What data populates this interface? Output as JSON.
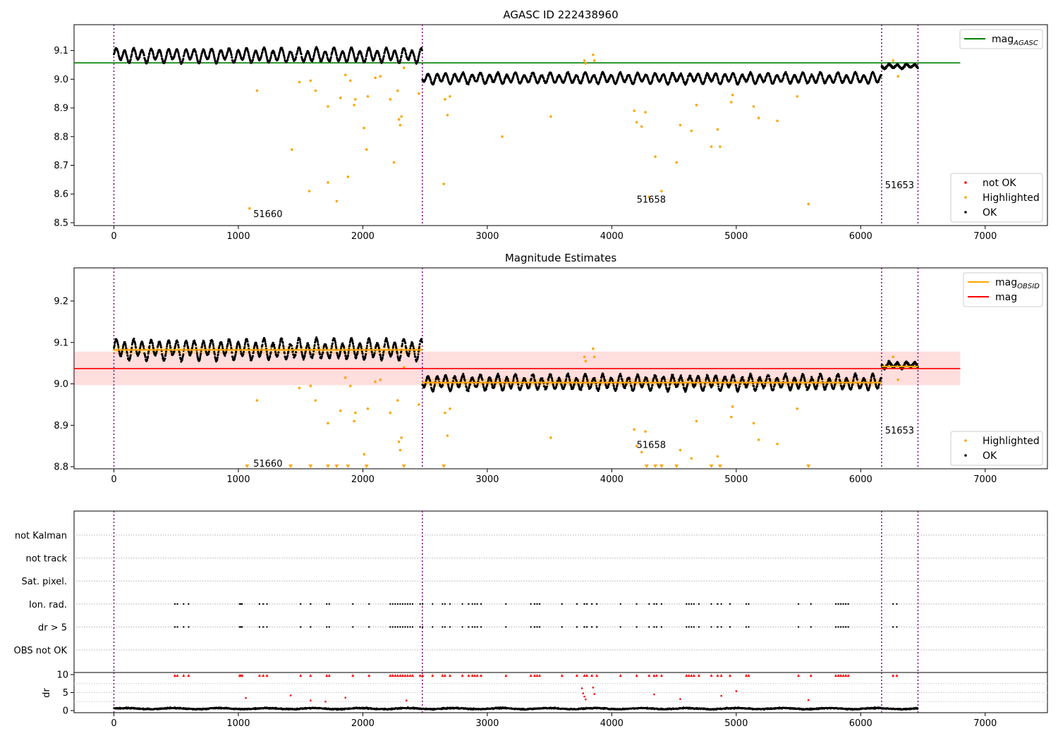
{
  "chart_data": [
    {
      "id": "agasc-panel",
      "type": "scatter",
      "title": "AGASC ID 222438960",
      "xlim": [
        -320,
        7500
      ],
      "ylim": [
        8.49,
        9.19
      ],
      "xticks": [
        0,
        1000,
        2000,
        3000,
        4000,
        5000,
        6000,
        7000
      ],
      "yticks": [
        8.5,
        8.6,
        8.7,
        8.8,
        8.9,
        9.0,
        9.1
      ],
      "ytick_labels": [
        "8.5",
        "8.6",
        "8.7",
        "8.8",
        "8.9",
        "9.0",
        "9.1"
      ],
      "vlines_x": [
        0,
        2478,
        6168,
        6460
      ],
      "obsid_annotations": [
        {
          "label": "51660",
          "x": 1120,
          "y": 8.52
        },
        {
          "label": "51658",
          "x": 4200,
          "y": 8.57
        },
        {
          "label": "51653",
          "x": 6195,
          "y": 8.62
        }
      ],
      "hlines": [
        {
          "name": "mag_AGASC",
          "y": 9.057,
          "x0": -320,
          "x1": 6800,
          "color": "#008000"
        }
      ],
      "legend_upper": {
        "position": "upper-right",
        "entries": [
          {
            "label": "mag",
            "subscript": "AGASC",
            "kind": "line",
            "color": "#008000"
          }
        ]
      },
      "legend_lower": {
        "position": "lower-right",
        "entries": [
          {
            "label": "not OK",
            "kind": "dot",
            "color": "#ff0000"
          },
          {
            "label": "Highlighted",
            "kind": "dot",
            "color": "#ffa500"
          },
          {
            "label": "OK",
            "kind": "dot",
            "color": "#000000"
          }
        ]
      },
      "segments": [
        {
          "x0": 0,
          "x1": 2478,
          "base": 9.083,
          "amp": 0.02
        },
        {
          "x0": 2478,
          "x1": 6168,
          "base": 9.003,
          "amp": 0.015
        },
        {
          "x0": 6168,
          "x1": 6460,
          "base": 9.045,
          "amp": 0.006
        }
      ],
      "highlighted_points": [
        [
          1090,
          8.55
        ],
        [
          1150,
          8.96
        ],
        [
          1430,
          8.755
        ],
        [
          1490,
          8.99
        ],
        [
          1570,
          8.61
        ],
        [
          1580,
          8.995
        ],
        [
          1620,
          8.96
        ],
        [
          1720,
          8.64
        ],
        [
          1720,
          8.905
        ],
        [
          1790,
          8.575
        ],
        [
          1820,
          8.935
        ],
        [
          1860,
          9.015
        ],
        [
          1880,
          8.66
        ],
        [
          1900,
          8.995
        ],
        [
          1930,
          8.91
        ],
        [
          1940,
          8.93
        ],
        [
          2010,
          8.83
        ],
        [
          2030,
          8.755
        ],
        [
          2040,
          8.94
        ],
        [
          2100,
          9.005
        ],
        [
          2140,
          9.01
        ],
        [
          2220,
          8.93
        ],
        [
          2250,
          8.71
        ],
        [
          2280,
          8.96
        ],
        [
          2290,
          8.86
        ],
        [
          2300,
          8.84
        ],
        [
          2310,
          8.87
        ],
        [
          2330,
          9.04
        ],
        [
          2450,
          8.95
        ],
        [
          2650,
          8.635
        ],
        [
          2660,
          8.93
        ],
        [
          2680,
          8.875
        ],
        [
          2700,
          8.94
        ],
        [
          3120,
          8.8
        ],
        [
          3510,
          8.87
        ],
        [
          3780,
          9.065
        ],
        [
          3790,
          9.055
        ],
        [
          3850,
          9.085
        ],
        [
          3860,
          9.065
        ],
        [
          4180,
          8.89
        ],
        [
          4200,
          8.85
        ],
        [
          4240,
          8.835
        ],
        [
          4270,
          8.885
        ],
        [
          4300,
          8.59
        ],
        [
          4350,
          8.73
        ],
        [
          4400,
          8.61
        ],
        [
          4520,
          8.71
        ],
        [
          4550,
          8.84
        ],
        [
          4640,
          8.82
        ],
        [
          4680,
          8.91
        ],
        [
          4800,
          8.765
        ],
        [
          4850,
          8.825
        ],
        [
          4870,
          8.765
        ],
        [
          4960,
          8.92
        ],
        [
          4970,
          8.945
        ],
        [
          5140,
          8.905
        ],
        [
          5180,
          8.865
        ],
        [
          5330,
          8.855
        ],
        [
          5490,
          8.94
        ],
        [
          5580,
          8.565
        ],
        [
          6260,
          9.065
        ],
        [
          6300,
          9.01
        ]
      ]
    },
    {
      "id": "magnitude-panel",
      "type": "scatter",
      "title": "Magnitude Estimates",
      "xlim": [
        -320,
        7500
      ],
      "ylim": [
        8.795,
        9.28
      ],
      "xticks": [
        0,
        1000,
        2000,
        3000,
        4000,
        5000,
        6000,
        7000
      ],
      "yticks": [
        8.8,
        8.9,
        9.0,
        9.1,
        9.2
      ],
      "ytick_labels": [
        "8.8",
        "8.9",
        "9.0",
        "9.1",
        "9.2"
      ],
      "vlines_x": [
        0,
        2478,
        6168,
        6460
      ],
      "obsid_annotations": [
        {
          "label": "51660",
          "x": 1120,
          "y": 8.8
        },
        {
          "label": "51658",
          "x": 4200,
          "y": 8.845
        },
        {
          "label": "51653",
          "x": 6195,
          "y": 8.88
        }
      ],
      "mag": {
        "value": 9.037,
        "band": [
          8.997,
          9.078
        ],
        "x0": -320,
        "x1": 6800,
        "color": "#ff0000"
      },
      "obsid_means": [
        {
          "x0": 0,
          "x1": 2478,
          "value": 9.082,
          "band": [
            9.072,
            9.092
          ]
        },
        {
          "x0": 2478,
          "x1": 6168,
          "value": 9.003,
          "band": [
            8.993,
            9.013
          ]
        },
        {
          "x0": 6168,
          "x1": 6460,
          "value": 9.042,
          "band": [
            9.036,
            9.048
          ]
        }
      ],
      "legend_upper": {
        "position": "upper-right",
        "entries": [
          {
            "label": "mag",
            "subscript": "OBSID",
            "kind": "line",
            "color": "#ffa500"
          },
          {
            "label": "mag",
            "subscript": "",
            "kind": "line",
            "color": "#ff0000"
          }
        ]
      },
      "legend_lower": {
        "position": "lower-right",
        "entries": [
          {
            "label": "Highlighted",
            "kind": "dot",
            "color": "#ffa500"
          },
          {
            "label": "OK",
            "kind": "dot",
            "color": "#000000"
          }
        ]
      },
      "clipped_triangles_x": [
        1070,
        1420,
        1580,
        1720,
        1790,
        1880,
        2030,
        2330,
        2650,
        4280,
        4350,
        4400,
        4520,
        4800,
        4870,
        5580
      ]
    },
    {
      "id": "flags-panel",
      "type": "scatter",
      "xlim": [
        -320,
        7500
      ],
      "vlines_x": [
        0,
        2478,
        6168,
        6460
      ],
      "flag_labels": [
        "not Kalman",
        "not track",
        "Sat. pixel.",
        "Ion. rad.",
        "dr > 5",
        "OBS not OK"
      ],
      "flagged_x": [
        490,
        510,
        560,
        600,
        1010,
        1020,
        1030,
        1170,
        1200,
        1230,
        1500,
        1580,
        1710,
        1730,
        1920,
        2050,
        2220,
        2240,
        2260,
        2280,
        2300,
        2320,
        2340,
        2360,
        2380,
        2400,
        2460,
        2480,
        2560,
        2640,
        2660,
        2700,
        2800,
        2850,
        2880,
        2900,
        2920,
        2950,
        3150,
        3350,
        3380,
        3400,
        3420,
        3600,
        3720,
        3780,
        3800,
        3840,
        3880,
        4070,
        4200,
        4300,
        4340,
        4360,
        4400,
        4600,
        4620,
        4640,
        4660,
        4700,
        4800,
        4850,
        4880,
        4950,
        5080,
        5100,
        5500,
        5600,
        5800,
        5820,
        5840,
        5860,
        5880,
        5900,
        6260,
        6290
      ]
    },
    {
      "id": "dr-panel",
      "type": "scatter",
      "ylabel": "dr",
      "xlim": [
        -320,
        7500
      ],
      "ylim": [
        0,
        10
      ],
      "xticks": [
        0,
        1000,
        2000,
        3000,
        4000,
        5000,
        6000,
        7000
      ],
      "yticks": [
        0,
        5,
        10
      ],
      "ytick_labels": [
        "0",
        "5",
        "10"
      ],
      "vlines_x": [
        0,
        2478,
        6168,
        6460
      ],
      "outlier_points": [
        [
          1060,
          3.5
        ],
        [
          1420,
          4.2
        ],
        [
          1580,
          2.8
        ],
        [
          1700,
          2.5
        ],
        [
          1860,
          3.6
        ],
        [
          2350,
          2.8
        ],
        [
          3760,
          6.2
        ],
        [
          3770,
          4.8
        ],
        [
          3780,
          3.9
        ],
        [
          3790,
          3.1
        ],
        [
          3850,
          6.4
        ],
        [
          3860,
          4.6
        ],
        [
          4340,
          4.5
        ],
        [
          4550,
          3.2
        ],
        [
          4880,
          4.1
        ],
        [
          5000,
          5.4
        ],
        [
          5580,
          2.9
        ]
      ]
    }
  ]
}
